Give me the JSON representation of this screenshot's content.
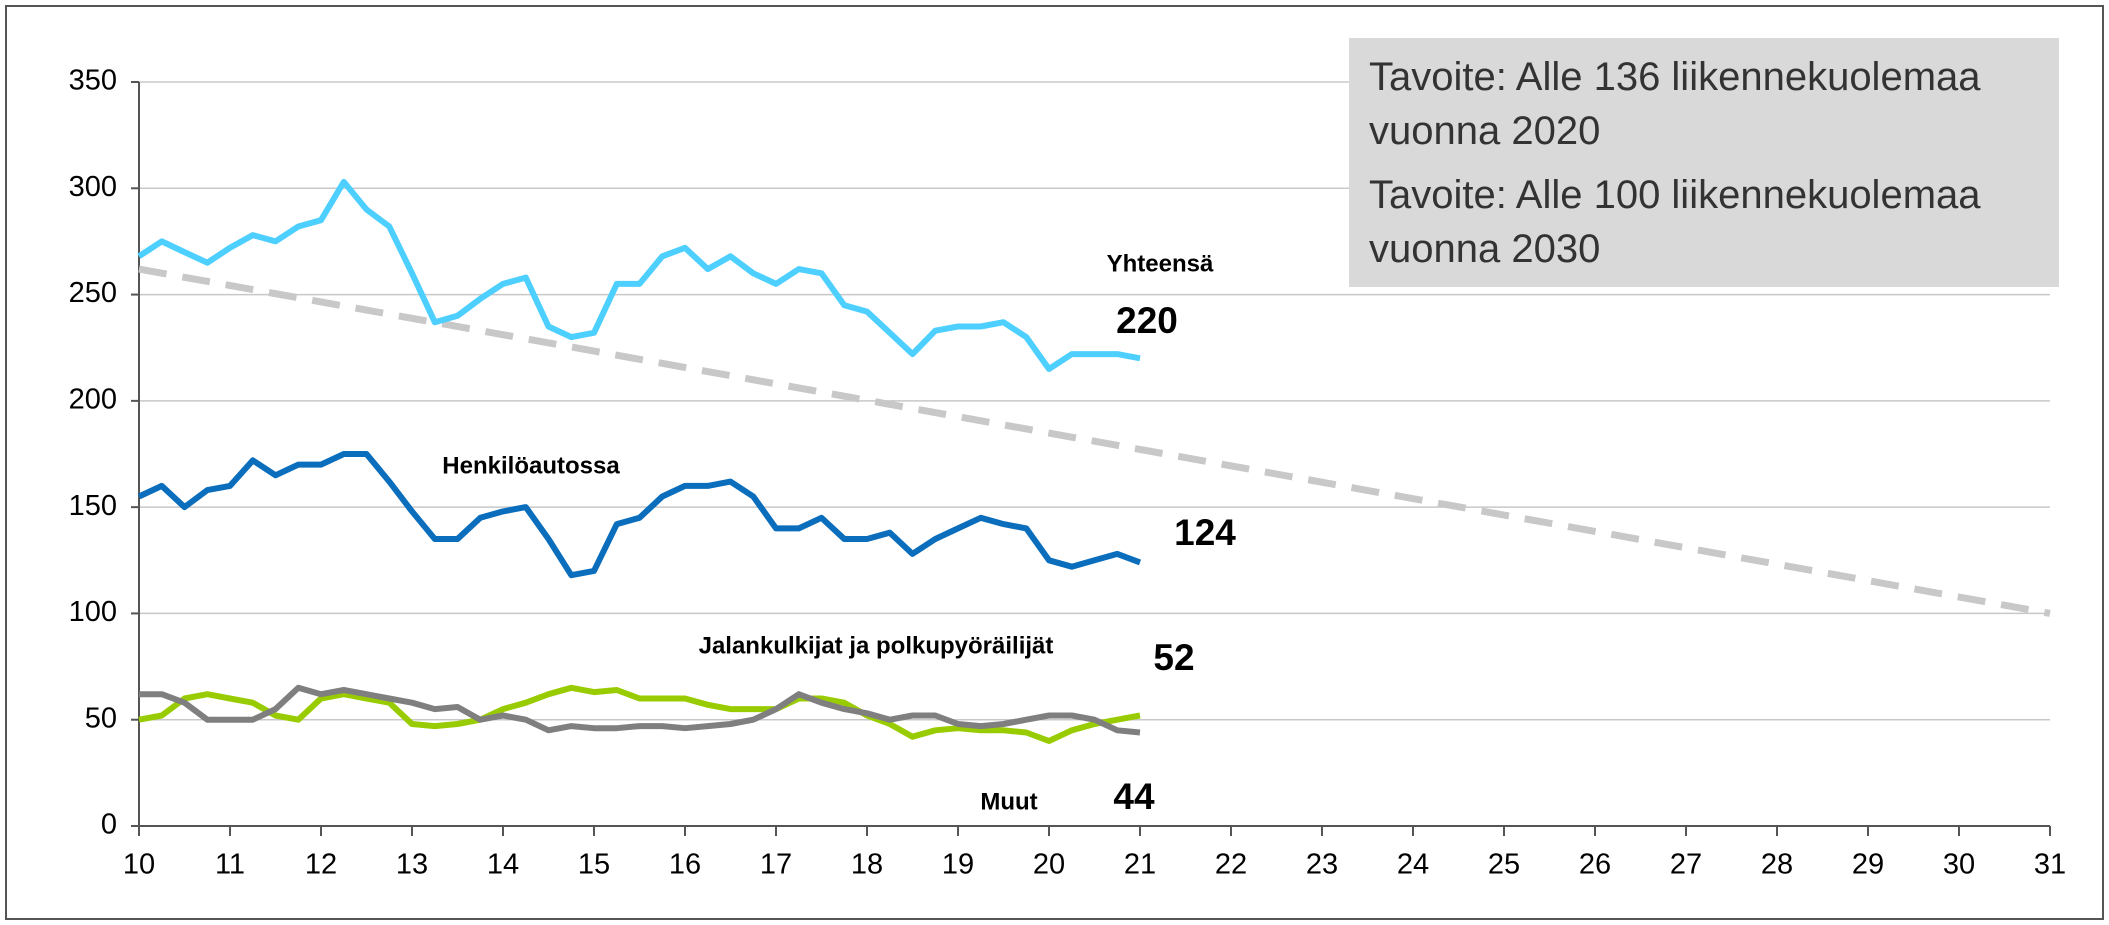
{
  "chart_data": {
    "type": "line",
    "annotations": [
      "Tavoite: Alle 136 liikennekuolemaa vuonna 2020",
      "Tavoite: Alle 100 liikennekuolemaa vuonna 2030"
    ],
    "x": [
      10,
      10.25,
      10.5,
      10.75,
      11,
      11.25,
      11.5,
      11.75,
      12,
      12.25,
      12.5,
      12.75,
      13,
      13.25,
      13.5,
      13.75,
      14,
      14.25,
      14.5,
      14.75,
      15,
      15.25,
      15.5,
      15.75,
      16,
      16.25,
      16.5,
      16.75,
      17,
      17.25,
      17.5,
      17.75,
      18,
      18.25,
      18.5,
      18.75,
      19,
      19.25,
      19.5,
      19.75,
      20,
      20.25,
      20.5,
      20.75,
      21
    ],
    "series": [
      {
        "name": "Yhteensä",
        "color": "#4dcfff",
        "values": [
          268,
          275,
          270,
          265,
          272,
          278,
          275,
          282,
          285,
          303,
          290,
          282,
          260,
          237,
          240,
          248,
          255,
          258,
          235,
          230,
          232,
          255,
          255,
          268,
          272,
          262,
          268,
          260,
          255,
          262,
          260,
          245,
          242,
          232,
          222,
          233,
          235,
          235,
          237,
          230,
          215,
          222,
          222,
          222,
          220
        ]
      },
      {
        "name": "Henkilöautossa",
        "color": "#0a6ebd",
        "values": [
          155,
          160,
          150,
          158,
          160,
          172,
          165,
          170,
          170,
          175,
          175,
          162,
          148,
          135,
          135,
          145,
          148,
          150,
          135,
          118,
          120,
          142,
          145,
          155,
          160,
          160,
          162,
          155,
          140,
          140,
          145,
          135,
          135,
          138,
          128,
          135,
          140,
          145,
          142,
          140,
          125,
          122,
          125,
          128,
          124
        ]
      },
      {
        "name": "Jalankulkijat ja polkupyöräilijät",
        "color": "#99cc00",
        "values": [
          50,
          52,
          60,
          62,
          60,
          58,
          52,
          50,
          60,
          62,
          60,
          58,
          48,
          47,
          48,
          50,
          55,
          58,
          62,
          65,
          63,
          64,
          60,
          60,
          60,
          57,
          55,
          55,
          55,
          60,
          60,
          58,
          52,
          48,
          42,
          45,
          46,
          45,
          45,
          44,
          40,
          45,
          48,
          50,
          52
        ]
      },
      {
        "name": "Muut",
        "color": "#7f7f7f",
        "values": [
          62,
          62,
          58,
          50,
          50,
          50,
          55,
          65,
          62,
          64,
          62,
          60,
          58,
          55,
          56,
          50,
          52,
          50,
          45,
          47,
          46,
          46,
          47,
          47,
          46,
          47,
          48,
          50,
          55,
          62,
          58,
          55,
          53,
          50,
          52,
          52,
          48,
          47,
          48,
          50,
          52,
          52,
          50,
          45,
          44
        ]
      }
    ],
    "target": {
      "x": [
        10,
        31
      ],
      "values": [
        262,
        100
      ],
      "color": "#c8c8c8",
      "dashed": true
    },
    "xlim": [
      10,
      31
    ],
    "xticks": [
      10,
      11,
      12,
      13,
      14,
      15,
      16,
      17,
      18,
      19,
      20,
      21,
      22,
      23,
      24,
      25,
      26,
      27,
      28,
      29,
      30,
      31
    ],
    "ylim": [
      0,
      350
    ],
    "yticks": [
      0,
      50,
      100,
      150,
      200,
      250,
      300,
      350
    ],
    "grid": true
  }
}
